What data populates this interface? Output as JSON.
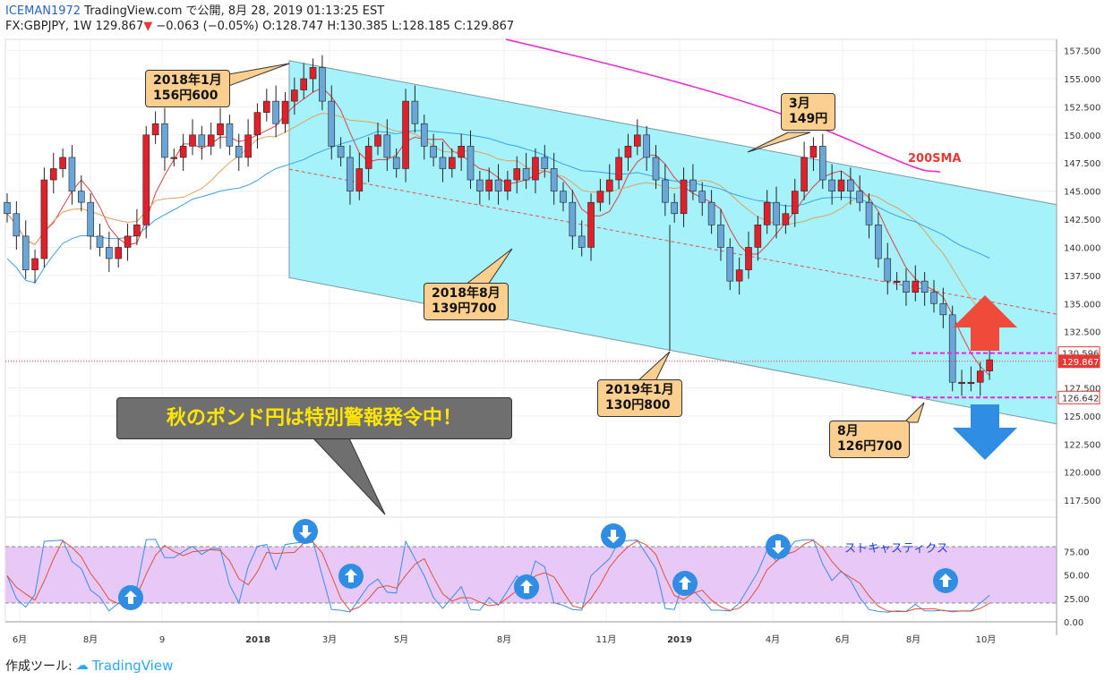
{
  "header": {
    "author": "ICEMAN1972",
    "line1_rest": " TradingView.com で公開, 8月 28, 2019 01:13:25 EST",
    "symbol": "FX:GBPJPY, 1W",
    "last": "129.867",
    "change": "−0.063 (−0.05%)",
    "ohlc_o": "O:128.747",
    "ohlc_h": "H:130.385",
    "ohlc_l": "L:128.185",
    "ohlc_c": "C:129.867"
  },
  "footer": {
    "label": "作成ツール:",
    "brand": "TradingView"
  },
  "annotations": {
    "jan2018": "2018年1月\n156円600",
    "aug2018": "2018年8月\n139円700",
    "jan2019": "2019年1月\n130円800",
    "mar2019": "3月\n149円",
    "aug2019": "8月\n126円700",
    "banner": "秋のポンド円は特別警報発令中！",
    "sma": "200SMA",
    "stoch": "ストキャスティクス"
  },
  "colors": {
    "up": "#e0202a",
    "down": "#6aa6d8",
    "channel": "#a6f2fa",
    "stochBand": "#e7c8f7",
    "sma200": "#f020d0",
    "magentaLine": "#f020f0"
  },
  "chart_data": {
    "type": "candlestick",
    "ylim": [
      116,
      158.5
    ],
    "y_ticks": [
      "157.500",
      "155.000",
      "152.500",
      "150.000",
      "147.500",
      "145.000",
      "142.500",
      "140.000",
      "137.500",
      "135.000",
      "132.500",
      "130.000",
      "127.500",
      "125.000",
      "122.500",
      "120.000",
      "117.500"
    ],
    "price_labels": {
      "high": "130.596",
      "last": "129.867",
      "low": "126.642"
    },
    "x_ticks": [
      "6月",
      "8月",
      "9",
      "2018",
      "3月",
      "5月",
      "8月",
      "11月",
      "2019",
      "4月",
      "6月",
      "8月",
      "10月"
    ],
    "stoch_ticks": [
      "75.00",
      "50.00",
      "25.00",
      "0.00"
    ],
    "stoch_band": [
      20,
      80
    ],
    "closes": [
      143,
      141,
      138,
      139,
      146,
      147,
      148,
      145,
      144,
      141,
      140,
      139,
      140,
      141,
      142,
      150,
      151,
      148,
      148,
      149,
      150,
      149,
      150,
      151,
      149,
      148,
      150,
      152,
      153,
      151,
      153,
      154,
      155,
      156,
      153,
      149,
      148,
      145,
      147,
      149,
      150,
      148,
      147,
      153,
      151,
      149,
      148,
      147,
      148,
      149,
      146,
      145,
      146,
      145,
      146,
      147,
      146,
      148,
      147,
      145,
      144,
      141,
      140,
      144,
      145,
      146,
      148,
      149,
      150,
      148,
      146,
      144,
      143,
      146,
      145,
      144,
      142,
      140,
      137,
      138,
      140,
      142,
      144,
      142,
      143,
      145,
      148,
      149,
      146,
      145,
      146,
      145,
      144,
      142,
      139,
      137,
      137,
      136,
      137,
      136,
      135,
      134,
      128,
      128,
      128,
      129,
      130
    ]
  }
}
